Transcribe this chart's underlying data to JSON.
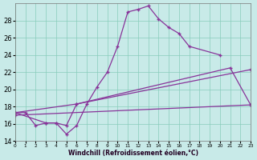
{
  "xlabel": "Windchill (Refroidissement éolien,°C)",
  "bg_color": "#c8eae8",
  "line_color": "#883399",
  "grid_color": "#88ccbb",
  "line1_x": [
    0,
    1,
    2,
    3,
    4,
    5,
    6,
    7,
    8,
    9,
    10,
    11,
    12,
    13,
    14,
    15,
    16,
    17,
    20
  ],
  "line1_y": [
    17.3,
    17.3,
    15.8,
    16.1,
    16.1,
    14.8,
    15.8,
    18.3,
    20.3,
    22.0,
    25.0,
    29.0,
    29.3,
    29.7,
    28.2,
    27.2,
    26.5,
    25.0,
    24.0
  ],
  "line2_x": [
    0,
    3,
    4,
    5,
    6,
    21,
    23
  ],
  "line2_y": [
    17.3,
    16.1,
    16.1,
    15.8,
    18.3,
    22.5,
    18.2
  ],
  "line3_x": [
    0,
    6,
    23
  ],
  "line3_y": [
    17.3,
    18.3,
    22.3
  ],
  "line4_x": [
    0,
    23
  ],
  "line4_y": [
    17.0,
    18.2
  ],
  "ylim": [
    14,
    30
  ],
  "xlim": [
    0,
    23
  ],
  "yticks": [
    14,
    16,
    18,
    20,
    22,
    24,
    26,
    28
  ],
  "xticks": [
    0,
    1,
    2,
    3,
    4,
    5,
    6,
    7,
    8,
    9,
    10,
    11,
    12,
    13,
    14,
    15,
    16,
    17,
    18,
    19,
    20,
    21,
    22,
    23
  ]
}
